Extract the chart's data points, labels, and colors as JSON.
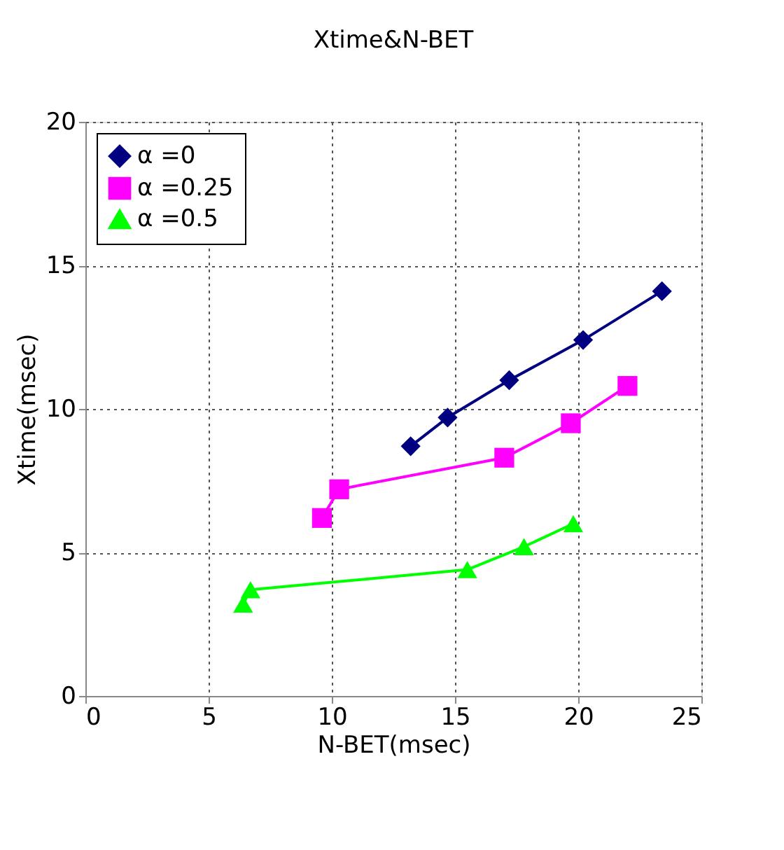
{
  "chart_data": {
    "type": "line",
    "title": "Xtime&N-BET",
    "xlabel": "N-BET(msec)",
    "ylabel": "Xtime(msec)",
    "xlim": [
      0,
      25
    ],
    "xticks": [
      0,
      5,
      10,
      15,
      20,
      25
    ],
    "ylim": [
      0,
      20
    ],
    "yticks": [
      0,
      5,
      10,
      15,
      20
    ],
    "grid": true,
    "legend": "top left",
    "line_style": "solid",
    "series": [
      {
        "name": "α =0",
        "color": "#000080",
        "marker": "diamond",
        "x": [
          13.2,
          14.7,
          17.2,
          20.2,
          23.4
        ],
        "values": [
          8.7,
          9.7,
          11.0,
          12.4,
          14.1
        ]
      },
      {
        "name": "α =0.25",
        "color": "#ff00ff",
        "marker": "square",
        "x": [
          9.6,
          10.3,
          17.0,
          19.7,
          22.0
        ],
        "values": [
          6.2,
          7.2,
          8.3,
          9.5,
          10.8
        ]
      },
      {
        "name": "α =0.5",
        "color": "#00ff00",
        "marker": "triangle",
        "x": [
          6.4,
          6.7,
          15.5,
          17.8,
          19.8
        ],
        "values": [
          3.2,
          3.7,
          4.4,
          5.2,
          6.0
        ]
      }
    ]
  }
}
